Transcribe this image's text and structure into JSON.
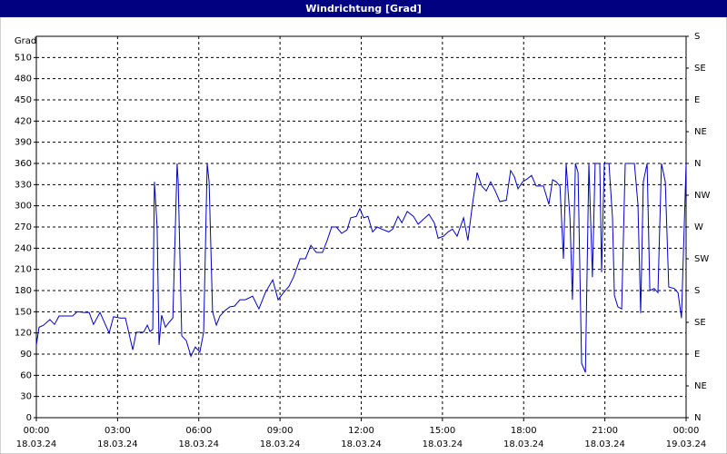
{
  "chart_data": {
    "type": "line",
    "title": "Windrichtung [Grad]",
    "ylabel": "Grad",
    "color": "#0000c8",
    "grid": true,
    "x": [
      0,
      0.1,
      0.27,
      0.5,
      0.67,
      0.84,
      1.07,
      1.34,
      1.51,
      1.75,
      1.95,
      2.11,
      2.35,
      2.69,
      2.85,
      3.09,
      3.29,
      3.56,
      3.69,
      3.96,
      4.1,
      4.2,
      4.3,
      4.36,
      4.46,
      4.53,
      4.63,
      4.77,
      4.9,
      5.04,
      5.2,
      5.24,
      5.37,
      5.54,
      5.71,
      5.87,
      6.04,
      6.18,
      6.31,
      6.38,
      6.51,
      6.65,
      6.78,
      6.98,
      7.15,
      7.32,
      7.52,
      7.72,
      7.99,
      8.22,
      8.46,
      8.73,
      8.93,
      9.13,
      9.33,
      9.5,
      9.74,
      9.94,
      10.14,
      10.34,
      10.57,
      10.74,
      10.91,
      11.08,
      11.28,
      11.48,
      11.61,
      11.82,
      11.95,
      12.09,
      12.25,
      12.42,
      12.59,
      12.76,
      13.02,
      13.16,
      13.36,
      13.5,
      13.7,
      13.93,
      14.1,
      14.27,
      14.5,
      14.7,
      14.84,
      15.04,
      15.21,
      15.37,
      15.54,
      15.78,
      15.94,
      16.11,
      16.28,
      16.45,
      16.62,
      16.78,
      16.95,
      17.12,
      17.36,
      17.52,
      17.66,
      17.79,
      17.96,
      18.13,
      18.29,
      18.46,
      18.73,
      18.93,
      19.07,
      19.2,
      19.34,
      19.47,
      19.57,
      19.71,
      19.8,
      19.91,
      20.01,
      20.14,
      20.28,
      20.41,
      20.54,
      20.64,
      20.81,
      20.88,
      20.98,
      21.15,
      21.28,
      21.35,
      21.48,
      21.62,
      21.75,
      22.09,
      22.22,
      22.32,
      22.42,
      22.56,
      22.66,
      22.82,
      22.96,
      23.09,
      23.23,
      23.36,
      23.56,
      23.7,
      23.83,
      24
    ],
    "values": [
      103,
      128,
      131,
      139,
      132,
      144,
      144,
      144,
      150,
      149,
      149,
      132,
      149,
      120,
      143,
      141,
      141,
      96,
      121,
      121,
      131,
      122,
      125,
      334,
      270,
      103,
      145,
      128,
      135,
      141,
      360,
      334,
      116,
      109,
      87,
      100,
      93,
      121,
      360,
      334,
      150,
      131,
      144,
      152,
      157,
      158,
      167,
      167,
      172,
      154,
      177,
      195,
      167,
      177,
      186,
      199,
      225,
      225,
      244,
      234,
      234,
      251,
      270,
      270,
      261,
      266,
      283,
      285,
      296,
      283,
      285,
      263,
      270,
      267,
      263,
      267,
      285,
      276,
      292,
      285,
      274,
      280,
      288,
      276,
      254,
      257,
      263,
      267,
      257,
      283,
      251,
      302,
      347,
      328,
      321,
      334,
      321,
      306,
      308,
      350,
      341,
      324,
      334,
      338,
      343,
      328,
      328,
      302,
      337,
      334,
      328,
      225,
      360,
      283,
      167,
      360,
      347,
      77,
      64,
      360,
      199,
      360,
      360,
      206,
      360,
      360,
      283,
      173,
      157,
      154,
      360,
      360,
      302,
      148,
      334,
      360,
      180,
      183,
      177,
      360,
      334,
      185,
      183,
      177,
      141,
      360
    ],
    "xlim": [
      0,
      24
    ],
    "xticks": [
      {
        "value": 0,
        "label": "00:00"
      },
      {
        "value": 3,
        "label": "03:00"
      },
      {
        "value": 6,
        "label": "06:00"
      },
      {
        "value": 9,
        "label": "09:00"
      },
      {
        "value": 12,
        "label": "12:00"
      },
      {
        "value": 15,
        "label": "15:00"
      },
      {
        "value": 18,
        "label": "18:00"
      },
      {
        "value": 21,
        "label": "21:00"
      },
      {
        "value": 24,
        "label": "00:00"
      }
    ],
    "xtick_dates": [
      "18.03.24",
      "18.03.24",
      "18.03.24",
      "18.03.24",
      "18.03.24",
      "18.03.24",
      "18.03.24",
      "18.03.24",
      "19.03.24"
    ],
    "ylim": [
      0,
      540
    ],
    "yticks": [
      0,
      30,
      60,
      90,
      120,
      150,
      180,
      210,
      240,
      270,
      300,
      330,
      360,
      390,
      420,
      450,
      480,
      510
    ],
    "y2lim": [
      0,
      540
    ],
    "y2ticks": [
      {
        "value": 0,
        "label": "N"
      },
      {
        "value": 45,
        "label": "NE"
      },
      {
        "value": 90,
        "label": "E"
      },
      {
        "value": 135,
        "label": "SE"
      },
      {
        "value": 180,
        "label": "S"
      },
      {
        "value": 225,
        "label": "SW"
      },
      {
        "value": 270,
        "label": "W"
      },
      {
        "value": 315,
        "label": "NW"
      },
      {
        "value": 360,
        "label": "N"
      },
      {
        "value": 405,
        "label": "NE"
      },
      {
        "value": 450,
        "label": "E"
      },
      {
        "value": 495,
        "label": "SE"
      },
      {
        "value": 540,
        "label": "S"
      }
    ]
  }
}
